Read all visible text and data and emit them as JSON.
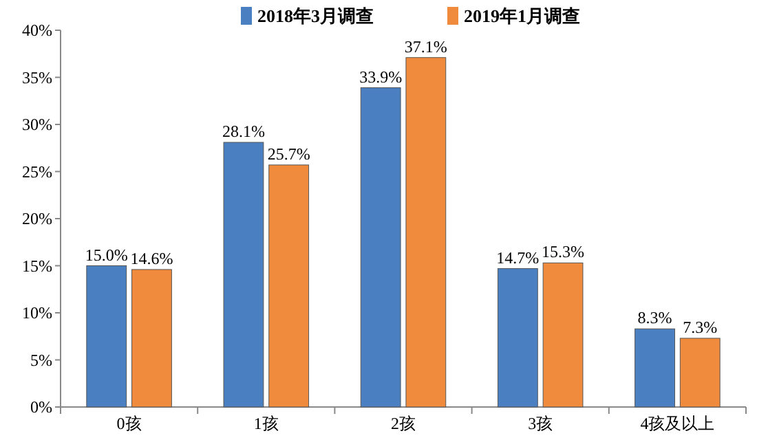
{
  "chart_data": {
    "type": "bar",
    "categories": [
      "0孩",
      "1孩",
      "2孩",
      "3孩",
      "4孩及以上"
    ],
    "series": [
      {
        "name": "2018年3月调查",
        "color": "#4a7fc1",
        "values": [
          15.0,
          28.1,
          33.9,
          14.7,
          8.3
        ],
        "value_labels": [
          "15.0%",
          "28.1%",
          "33.9%",
          "14.7%",
          "8.3%"
        ]
      },
      {
        "name": "2019年1月调查",
        "color": "#f08a3c",
        "values": [
          14.6,
          25.7,
          37.1,
          15.3,
          7.3
        ],
        "value_labels": [
          "14.6%",
          "25.7%",
          "37.1%",
          "15.3%",
          "7.3%"
        ]
      }
    ],
    "ylim": [
      0,
      40
    ],
    "yticks": [
      {
        "value": 0,
        "label": "0%"
      },
      {
        "value": 5,
        "label": "5%"
      },
      {
        "value": 10,
        "label": "10%"
      },
      {
        "value": 15,
        "label": "15%"
      },
      {
        "value": 20,
        "label": "20%"
      },
      {
        "value": 25,
        "label": "25%"
      },
      {
        "value": 30,
        "label": "30%"
      },
      {
        "value": 35,
        "label": "35%"
      },
      {
        "value": 40,
        "label": "40%"
      }
    ],
    "legend": "top"
  }
}
